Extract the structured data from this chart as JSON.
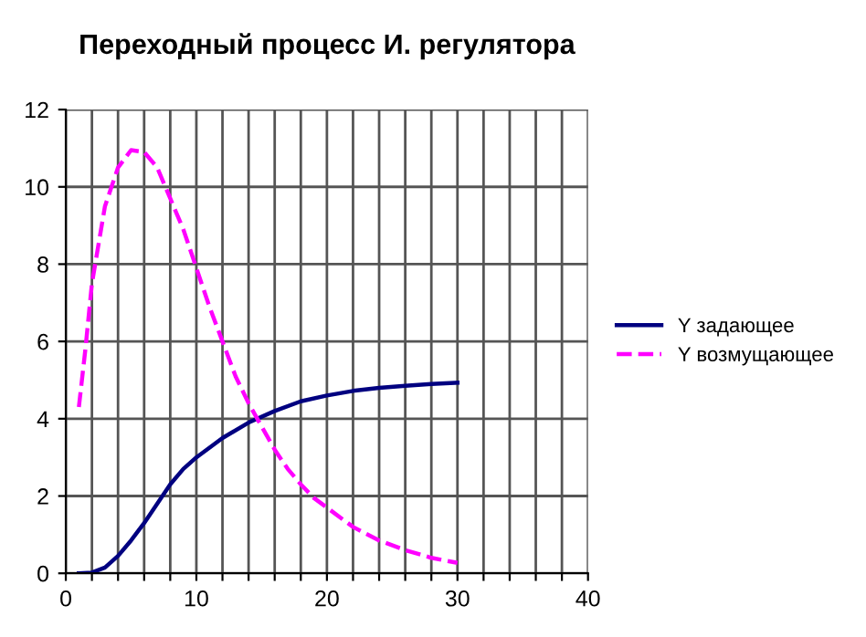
{
  "chart_data": {
    "type": "line",
    "title": "Переходный процесс И. регулятора",
    "series": [
      {
        "name": "Y задающее",
        "color": "#000080",
        "line_style": "solid",
        "x": [
          1,
          2,
          3,
          4,
          5,
          6,
          7,
          8,
          9,
          10,
          12,
          14,
          16,
          18,
          20,
          22,
          24,
          26,
          28,
          30
        ],
        "values": [
          0,
          0.02,
          0.15,
          0.45,
          0.85,
          1.3,
          1.8,
          2.3,
          2.7,
          3.0,
          3.5,
          3.9,
          4.2,
          4.45,
          4.6,
          4.72,
          4.8,
          4.85,
          4.9,
          4.93
        ]
      },
      {
        "name": "Y возмущающее",
        "color": "#ff00ff",
        "line_style": "dashed",
        "x": [
          1,
          1.5,
          2,
          3,
          4,
          5,
          6,
          7,
          8,
          9,
          10,
          11,
          12,
          13,
          14,
          15,
          16,
          17,
          18,
          19,
          20,
          22,
          24,
          26,
          28,
          30
        ],
        "values": [
          4.3,
          5.8,
          7.5,
          9.5,
          10.5,
          10.95,
          10.9,
          10.5,
          9.7,
          8.9,
          7.9,
          6.9,
          6.0,
          5.1,
          4.4,
          3.8,
          3.2,
          2.7,
          2.3,
          1.95,
          1.7,
          1.2,
          0.85,
          0.6,
          0.4,
          0.27
        ]
      }
    ],
    "xlim": [
      0,
      40
    ],
    "ylim": [
      0,
      12
    ],
    "xticks": [
      0,
      {
        "value": 2,
        "label": null
      },
      {
        "value": 4,
        "label": null
      },
      {
        "value": 6,
        "label": null
      },
      {
        "value": 8,
        "label": null
      },
      10,
      {
        "value": 12,
        "label": null
      },
      {
        "value": 14,
        "label": null
      },
      {
        "value": 16,
        "label": null
      },
      {
        "value": 18,
        "label": null
      },
      20,
      {
        "value": 22,
        "label": null
      },
      {
        "value": 24,
        "label": null
      },
      {
        "value": 26,
        "label": null
      },
      {
        "value": 28,
        "label": null
      },
      30,
      {
        "value": 32,
        "label": null
      },
      {
        "value": 34,
        "label": null
      },
      {
        "value": 36,
        "label": null
      },
      {
        "value": 38,
        "label": null
      },
      40
    ],
    "yticks": [
      0,
      2,
      4,
      6,
      8,
      10,
      12
    ],
    "grid": true,
    "legend": "right",
    "marker": "none"
  }
}
